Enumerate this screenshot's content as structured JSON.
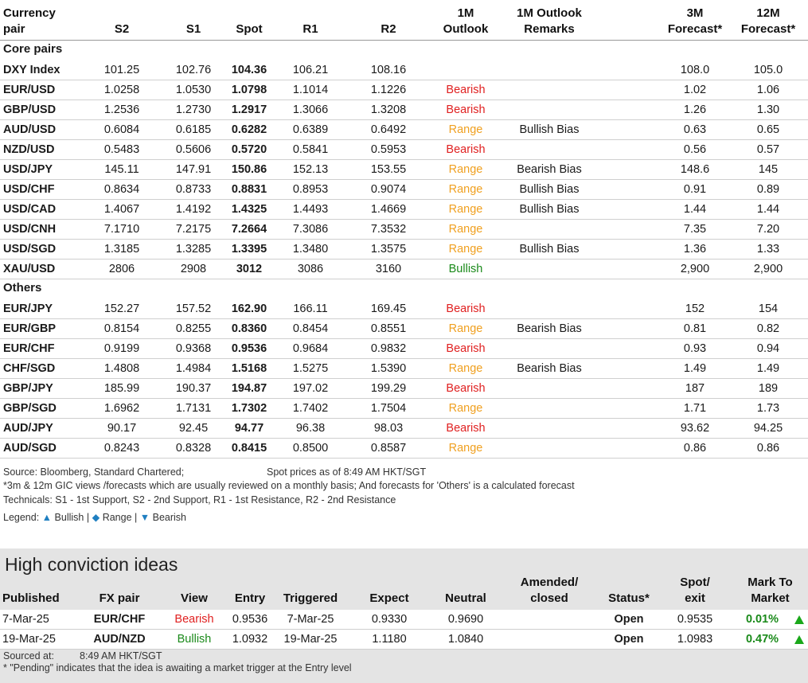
{
  "header": {
    "currency_pair": [
      "Currency",
      "pair"
    ],
    "s2": "S2",
    "s1": "S1",
    "spot": "Spot",
    "r1": "R1",
    "r2": "R2",
    "outlook_1m": [
      "1M",
      "Outlook"
    ],
    "remarks_1m": [
      "1M Outlook",
      "Remarks"
    ],
    "forecast_3m": [
      "3M",
      "Forecast*"
    ],
    "forecast_12m": [
      "12M",
      "Forecast*"
    ]
  },
  "core_label": "Core pairs",
  "others_label": "Others",
  "core_rows": [
    {
      "pair": "DXY Index",
      "s2": "101.25",
      "s1": "102.76",
      "spot": "104.36",
      "r1": "106.21",
      "r2": "108.16",
      "outlook": "",
      "remark": "",
      "f3": "108.0",
      "f12": "105.0"
    },
    {
      "pair": "EUR/USD",
      "s2": "1.0258",
      "s1": "1.0530",
      "spot": "1.0798",
      "r1": "1.1014",
      "r2": "1.1226",
      "outlook": "Bearish",
      "remark": "",
      "f3": "1.02",
      "f12": "1.06"
    },
    {
      "pair": "GBP/USD",
      "s2": "1.2536",
      "s1": "1.2730",
      "spot": "1.2917",
      "r1": "1.3066",
      "r2": "1.3208",
      "outlook": "Bearish",
      "remark": "",
      "f3": "1.26",
      "f12": "1.30"
    },
    {
      "pair": "AUD/USD",
      "s2": "0.6084",
      "s1": "0.6185",
      "spot": "0.6282",
      "r1": "0.6389",
      "r2": "0.6492",
      "outlook": "Range",
      "remark": "Bullish Bias",
      "f3": "0.63",
      "f12": "0.65"
    },
    {
      "pair": "NZD/USD",
      "s2": "0.5483",
      "s1": "0.5606",
      "spot": "0.5720",
      "r1": "0.5841",
      "r2": "0.5953",
      "outlook": "Bearish",
      "remark": "",
      "f3": "0.56",
      "f12": "0.57"
    },
    {
      "pair": "USD/JPY",
      "s2": "145.11",
      "s1": "147.91",
      "spot": "150.86",
      "r1": "152.13",
      "r2": "153.55",
      "outlook": "Range",
      "remark": "Bearish Bias",
      "f3": "148.6",
      "f12": "145"
    },
    {
      "pair": "USD/CHF",
      "s2": "0.8634",
      "s1": "0.8733",
      "spot": "0.8831",
      "r1": "0.8953",
      "r2": "0.9074",
      "outlook": "Range",
      "remark": "Bullish Bias",
      "f3": "0.91",
      "f12": "0.89"
    },
    {
      "pair": "USD/CAD",
      "s2": "1.4067",
      "s1": "1.4192",
      "spot": "1.4325",
      "r1": "1.4493",
      "r2": "1.4669",
      "outlook": "Range",
      "remark": "Bullish Bias",
      "f3": "1.44",
      "f12": "1.44"
    },
    {
      "pair": "USD/CNH",
      "s2": "7.1710",
      "s1": "7.2175",
      "spot": "7.2664",
      "r1": "7.3086",
      "r2": "7.3532",
      "outlook": "Range",
      "remark": "",
      "f3": "7.35",
      "f12": "7.20"
    },
    {
      "pair": "USD/SGD",
      "s2": "1.3185",
      "s1": "1.3285",
      "spot": "1.3395",
      "r1": "1.3480",
      "r2": "1.3575",
      "outlook": "Range",
      "remark": "Bullish Bias",
      "f3": "1.36",
      "f12": "1.33"
    },
    {
      "pair": "XAU/USD",
      "s2": "2806",
      "s1": "2908",
      "spot": "3012",
      "r1": "3086",
      "r2": "3160",
      "outlook": "Bullish",
      "remark": "",
      "f3": "2,900",
      "f12": "2,900"
    }
  ],
  "other_rows": [
    {
      "pair": "EUR/JPY",
      "s2": "152.27",
      "s1": "157.52",
      "spot": "162.90",
      "r1": "166.11",
      "r2": "169.45",
      "outlook": "Bearish",
      "remark": "",
      "f3": "152",
      "f12": "154"
    },
    {
      "pair": "EUR/GBP",
      "s2": "0.8154",
      "s1": "0.8255",
      "spot": "0.8360",
      "r1": "0.8454",
      "r2": "0.8551",
      "outlook": "Range",
      "remark": "Bearish Bias",
      "f3": "0.81",
      "f12": "0.82"
    },
    {
      "pair": "EUR/CHF",
      "s2": "0.9199",
      "s1": "0.9368",
      "spot": "0.9536",
      "r1": "0.9684",
      "r2": "0.9832",
      "outlook": "Bearish",
      "remark": "",
      "f3": "0.93",
      "f12": "0.94"
    },
    {
      "pair": "CHF/SGD",
      "s2": "1.4808",
      "s1": "1.4984",
      "spot": "1.5168",
      "r1": "1.5275",
      "r2": "1.5390",
      "outlook": "Range",
      "remark": "Bearish Bias",
      "f3": "1.49",
      "f12": "1.49"
    },
    {
      "pair": "GBP/JPY",
      "s2": "185.99",
      "s1": "190.37",
      "spot": "194.87",
      "r1": "197.02",
      "r2": "199.29",
      "outlook": "Bearish",
      "remark": "",
      "f3": "187",
      "f12": "189"
    },
    {
      "pair": "GBP/SGD",
      "s2": "1.6962",
      "s1": "1.7131",
      "spot": "1.7302",
      "r1": "1.7402",
      "r2": "1.7504",
      "outlook": "Range",
      "remark": "",
      "f3": "1.71",
      "f12": "1.73"
    },
    {
      "pair": "AUD/JPY",
      "s2": "90.17",
      "s1": "92.45",
      "spot": "94.77",
      "r1": "96.38",
      "r2": "98.03",
      "outlook": "Bearish",
      "remark": "",
      "f3": "93.62",
      "f12": "94.25"
    },
    {
      "pair": "AUD/SGD",
      "s2": "0.8243",
      "s1": "0.8328",
      "spot": "0.8415",
      "r1": "0.8500",
      "r2": "0.8587",
      "outlook": "Range",
      "remark": "",
      "f3": "0.86",
      "f12": "0.86"
    }
  ],
  "notes": {
    "source": "Source: Bloomberg, Standard Chartered;",
    "spot_time": "Spot prices as of 8:49 AM HKT/SGT",
    "forecast_note": "*3m & 12m GIC views /forecasts which are usually reviewed on a monthly basis; And forecasts for 'Others' is a calculated forecast",
    "technicals": "Technicals: S1 - 1st Support, S2 - 2nd Support, R1 - 1st Resistance, R2 - 2nd Resistance",
    "legend_prefix": "Legend:",
    "legend_bullish": "Bullish",
    "legend_range": "Range",
    "legend_bearish": "Bearish",
    "sep": "|"
  },
  "colors": {
    "bullish": "#1a8a1a",
    "bearish": "#e02020",
    "range": "#f0a020",
    "legend_icon": "#1f7fc1"
  },
  "hc": {
    "title": "High conviction ideas",
    "headers": {
      "published": "Published",
      "pair": "FX pair",
      "view": "View",
      "entry": "Entry",
      "triggered": "Triggered",
      "expect": "Expect",
      "neutral": "Neutral",
      "amended": [
        "Amended/",
        "closed"
      ],
      "status": "Status*",
      "spot_exit": [
        "Spot/",
        "exit"
      ],
      "mtm": [
        "Mark To",
        "Market"
      ]
    },
    "rows": [
      {
        "published": "7-Mar-25",
        "pair": "EUR/CHF",
        "view": "Bearish",
        "entry": "0.9536",
        "triggered": "7-Mar-25",
        "expect": "0.9330",
        "neutral": "0.9690",
        "amended": "",
        "status": "Open",
        "spot": "0.9535",
        "mtm": "0.01%"
      },
      {
        "published": "19-Mar-25",
        "pair": "AUD/NZD",
        "view": "Bullish",
        "entry": "1.0932",
        "triggered": "19-Mar-25",
        "expect": "1.1180",
        "neutral": "1.0840",
        "amended": "",
        "status": "Open",
        "spot": "1.0983",
        "mtm": "0.47%"
      }
    ],
    "sourced_label": "Sourced at:",
    "sourced_time": "8:49 AM HKT/SGT",
    "pending_note": "* \"Pending\" indicates that the idea is awaiting a market trigger at the Entry level"
  }
}
